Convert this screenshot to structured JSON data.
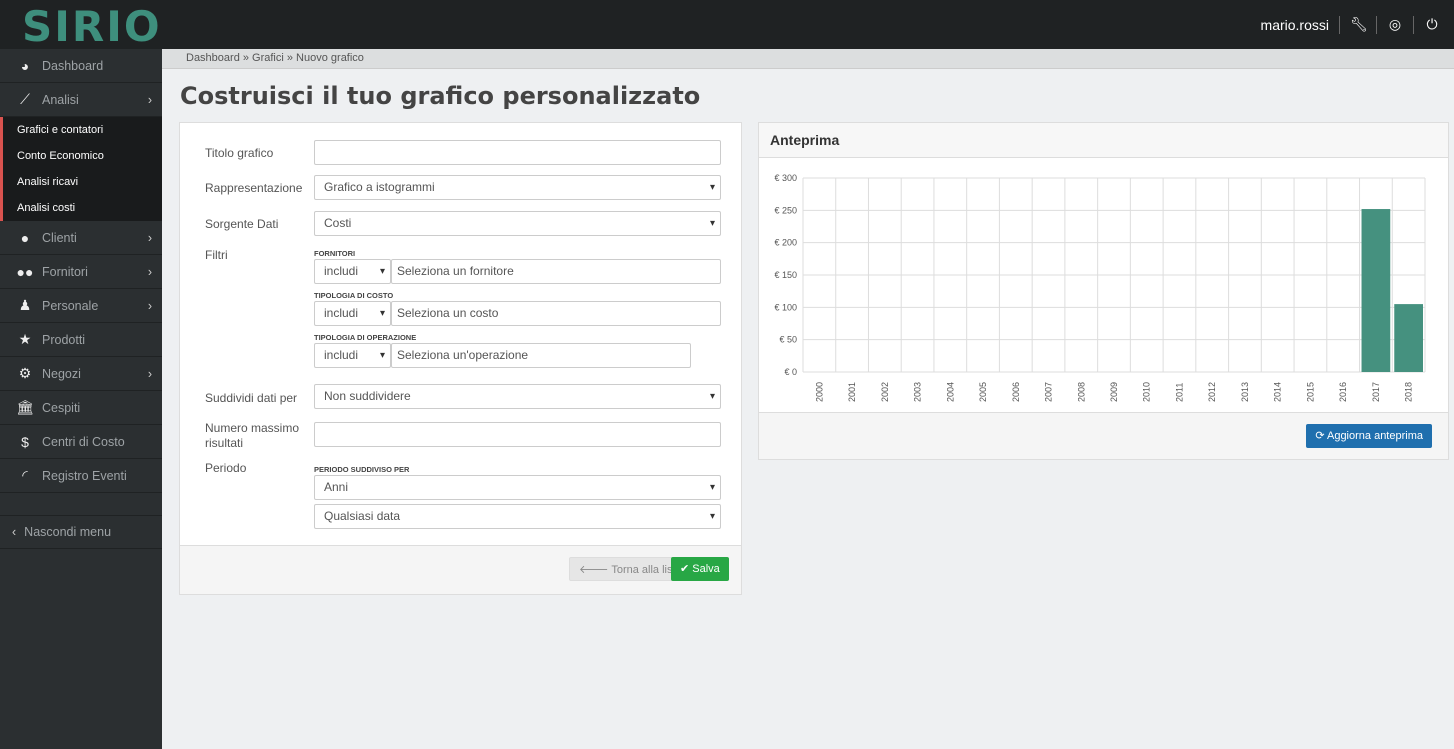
{
  "header": {
    "logo": "SIRIO",
    "user": "mario.rossi",
    "icons": [
      "wrench-icon",
      "lifebuoy-icon",
      "power-icon"
    ]
  },
  "sidebar": {
    "items": [
      {
        "label": "Dashboard",
        "icon": "dashboard-icon"
      },
      {
        "label": "Analisi",
        "icon": "line-chart-icon",
        "chevron": true
      }
    ],
    "subitems": [
      "Grafici e contatori",
      "Conto Economico",
      "Analisi ricavi",
      "Analisi costi"
    ],
    "items2": [
      {
        "label": "Clienti",
        "icon": "user-icon",
        "chevron": true
      },
      {
        "label": "Fornitori",
        "icon": "users-icon",
        "chevron": true
      },
      {
        "label": "Personale",
        "icon": "person-icon",
        "chevron": true
      },
      {
        "label": "Prodotti",
        "icon": "star-icon"
      },
      {
        "label": "Negozi",
        "icon": "gear-icon",
        "chevron": true
      },
      {
        "label": "Cespiti",
        "icon": "bank-icon"
      },
      {
        "label": "Centri di Costo",
        "icon": "dollar-icon"
      },
      {
        "label": "Registro Eventi",
        "icon": "rss-icon"
      }
    ],
    "hide": "Nascondi menu"
  },
  "breadcrumb": "Dashboard » Grafici » Nuovo grafico",
  "title": "Costruisci il tuo grafico personalizzato",
  "form": {
    "titolo_label": "Titolo grafico",
    "titolo_value": "",
    "rappr_label": "Rappresentazione",
    "rappr_value": "Grafico a istogrammi",
    "sorgente_label": "Sorgente Dati",
    "sorgente_value": "Costi",
    "filtri_label": "Filtri",
    "fornitori_label": "FORNITORI",
    "fornitori_mode": "includi",
    "fornitori_ph": "Seleziona un fornitore",
    "costo_label": "TIPOLOGIA DI COSTO",
    "costo_mode": "includi",
    "costo_ph": "Seleziona un costo",
    "oper_label": "TIPOLOGIA DI OPERAZIONE",
    "oper_mode": "includi",
    "oper_ph": "Seleziona un'operazione",
    "suddividi_label": "Suddividi dati per",
    "suddividi_value": "Non suddividere",
    "numero_label1": "Numero massimo",
    "numero_label2": "risultati",
    "numero_value": "",
    "periodo_label": "Periodo",
    "periodo_sub": "PERIODO SUDDIVISO PER",
    "periodo_value": "Anni",
    "data_value": "Qualsiasi data",
    "back": "Torna alla lista",
    "save": "Salva"
  },
  "preview": {
    "title": "Anteprima",
    "refresh": "Aggiorna anteprima"
  },
  "colors": {
    "bar": "#45917f",
    "save": "#28a745",
    "refresh": "#1f6fae"
  },
  "chart_data": {
    "type": "bar",
    "categories": [
      "2000",
      "2001",
      "2002",
      "2003",
      "2004",
      "2005",
      "2006",
      "2007",
      "2008",
      "2009",
      "2010",
      "2011",
      "2012",
      "2013",
      "2014",
      "2015",
      "2016",
      "2017",
      "2018"
    ],
    "values": [
      0,
      0,
      0,
      0,
      0,
      0,
      0,
      0,
      0,
      0,
      0,
      0,
      0,
      0,
      0,
      0,
      0,
      252,
      105
    ],
    "yticks": [
      "€ 0",
      "€ 50",
      "€ 100",
      "€ 150",
      "€ 200",
      "€ 250",
      "€ 300"
    ],
    "ylim": [
      0,
      300
    ],
    "grid": true
  }
}
